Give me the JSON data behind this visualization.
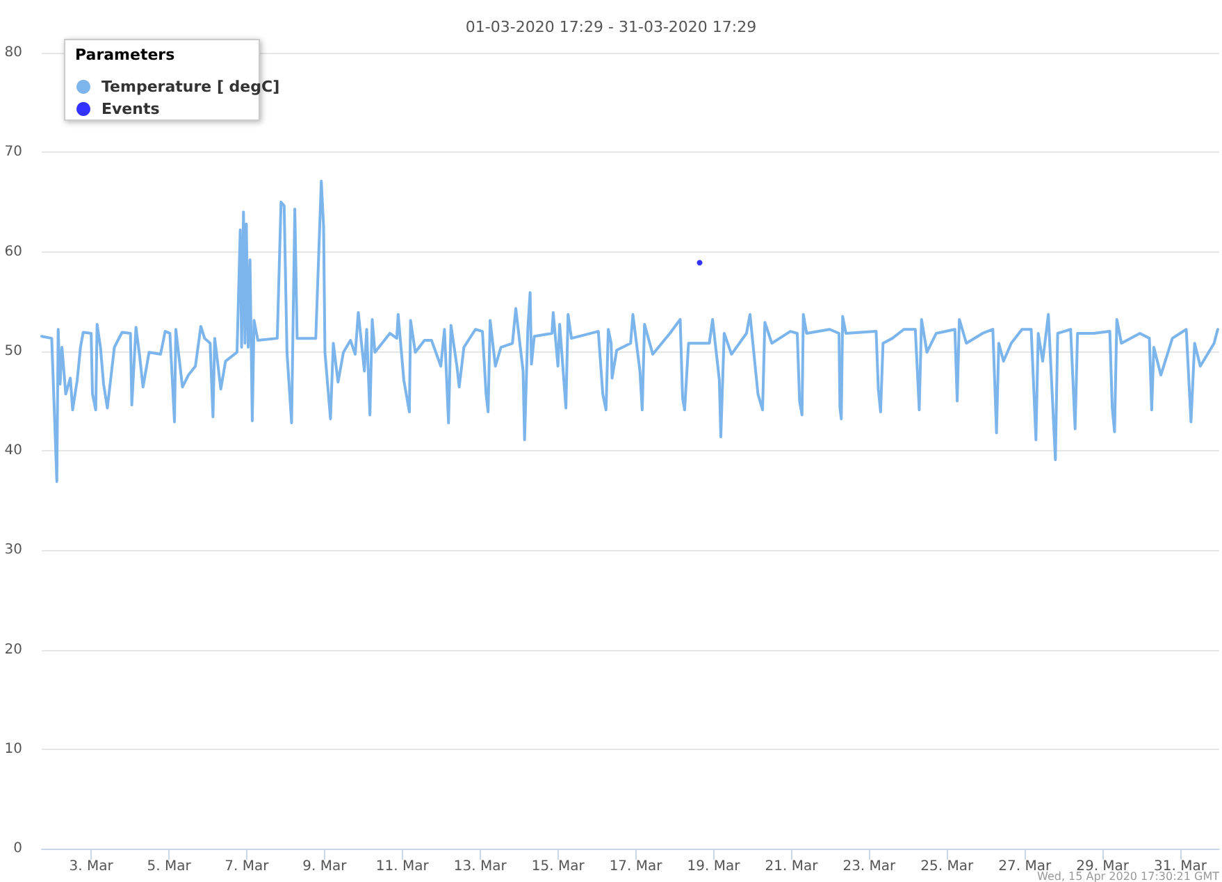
{
  "chart_data": {
    "type": "line",
    "title": "01-03-2020 17:29 - 31-03-2020 17:29",
    "legend_title": "Parameters",
    "annotations": [
      "Wed, 15 Apr 2020 17:30:21 GMT"
    ],
    "xlim": [
      "2020-03-01T17:30",
      "2020-04-01T00:00"
    ],
    "xticks": [
      {
        "value": "2020-03-03",
        "label": "3. Mar"
      },
      {
        "value": "2020-03-05",
        "label": "5. Mar"
      },
      {
        "value": "2020-03-07",
        "label": "7. Mar"
      },
      {
        "value": "2020-03-09",
        "label": "9. Mar"
      },
      {
        "value": "2020-03-11",
        "label": "11. Mar"
      },
      {
        "value": "2020-03-13",
        "label": "13. Mar"
      },
      {
        "value": "2020-03-15",
        "label": "15. Mar"
      },
      {
        "value": "2020-03-17",
        "label": "17. Mar"
      },
      {
        "value": "2020-03-19",
        "label": "19. Mar"
      },
      {
        "value": "2020-03-21",
        "label": "21. Mar"
      },
      {
        "value": "2020-03-23",
        "label": "23. Mar"
      },
      {
        "value": "2020-03-25",
        "label": "25. Mar"
      },
      {
        "value": "2020-03-27",
        "label": "27. Mar"
      },
      {
        "value": "2020-03-29",
        "label": "29. Mar"
      },
      {
        "value": "2020-03-31",
        "label": "31. Mar"
      }
    ],
    "ylim": [
      0,
      80
    ],
    "yticks": [
      0,
      10,
      20,
      30,
      40,
      50,
      60,
      70,
      80
    ],
    "grid": "y",
    "legend": "top left",
    "marker": "none",
    "line_style": "solid",
    "series": [
      {
        "name": "Temperature [ degC]",
        "color": "#7cb5ec",
        "x": [
          "2020-03-01T17:30",
          "2020-03-01T23:40",
          "2020-03-02T01:00",
          "2020-03-02T02:50",
          "2020-03-02T03:40",
          "2020-03-02T04:50",
          "2020-03-02T06:00",
          "2020-03-02T08:20",
          "2020-03-02T11:10",
          "2020-03-02T12:35",
          "2020-03-02T15:25",
          "2020-03-02T17:25",
          "2020-03-02T19:05",
          "2020-03-03T00:00",
          "2020-03-03T00:50",
          "2020-03-03T02:50",
          "2020-03-03T03:40",
          "2020-03-03T05:45",
          "2020-03-03T07:40",
          "2020-03-03T10:00",
          "2020-03-03T14:20",
          "2020-03-03T19:05",
          "2020-03-04T00:15",
          "2020-03-04T01:05",
          "2020-03-04T03:40",
          "2020-03-04T06:00",
          "2020-03-04T08:00",
          "2020-03-04T11:45",
          "2020-03-04T18:50",
          "2020-03-04T21:40",
          "2020-03-05T00:35",
          "2020-03-05T03:25",
          "2020-03-05T04:15",
          "2020-03-05T08:20",
          "2020-03-05T12:00",
          "2020-03-05T16:20",
          "2020-03-05T19:40",
          "2020-03-05T22:00",
          "2020-03-06T01:25",
          "2020-03-06T03:10",
          "2020-03-06T04:15",
          "2020-03-06T08:00",
          "2020-03-06T10:55",
          "2020-03-06T18:00",
          "2020-03-06T20:00",
          "2020-03-06T20:50",
          "2020-03-06T22:00",
          "2020-03-06T22:55",
          "2020-03-06T23:45",
          "2020-03-07T00:55",
          "2020-03-07T02:00",
          "2020-03-07T03:25",
          "2020-03-07T04:30",
          "2020-03-07T06:50",
          "2020-03-07T18:50",
          "2020-03-07T21:10",
          "2020-03-07T23:05",
          "2020-03-08T00:50",
          "2020-03-08T03:40",
          "2020-03-08T05:40",
          "2020-03-08T07:05",
          "2020-03-08T18:35",
          "2020-03-08T22:00",
          "2020-03-08T23:25",
          "2020-03-09T00:15",
          "2020-03-09T03:40",
          "2020-03-09T05:25",
          "2020-03-09T08:20",
          "2020-03-09T11:40",
          "2020-03-09T16:00",
          "2020-03-09T18:55",
          "2020-03-09T20:50",
          "2020-03-10T00:35",
          "2020-03-10T02:00",
          "2020-03-10T04:00",
          "2020-03-10T05:25",
          "2020-03-10T07:05",
          "2020-03-10T16:20",
          "2020-03-10T20:35",
          "2020-03-10T21:25",
          "2020-03-11T00:55",
          "2020-03-11T04:20",
          "2020-03-11T05:05",
          "2020-03-11T08:00",
          "2020-03-11T13:40",
          "2020-03-11T18:00",
          "2020-03-11T23:45",
          "2020-03-12T02:00",
          "2020-03-12T04:30",
          "2020-03-12T06:00",
          "2020-03-12T09:40",
          "2020-03-12T11:05",
          "2020-03-12T14:00",
          "2020-03-12T21:05",
          "2020-03-13T01:25",
          "2020-03-13T03:40",
          "2020-03-13T04:55",
          "2020-03-13T06:10",
          "2020-03-13T09:25",
          "2020-03-13T12:50",
          "2020-03-13T19:55",
          "2020-03-13T22:00",
          "2020-03-14T02:30",
          "2020-03-14T03:25",
          "2020-03-14T05:25",
          "2020-03-14T06:50",
          "2020-03-14T07:40",
          "2020-03-14T09:25",
          "2020-03-14T20:20",
          "2020-03-14T21:05",
          "2020-03-15T00:00",
          "2020-03-15T01:05",
          "2020-03-15T04:55",
          "2020-03-15T06:15",
          "2020-03-15T08:20",
          "2020-03-16T00:55",
          "2020-03-16T03:40",
          "2020-03-16T05:40",
          "2020-03-16T07:05",
          "2020-03-16T08:50",
          "2020-03-16T09:25",
          "2020-03-16T12:15",
          "2020-03-16T20:50",
          "2020-03-16T22:15",
          "2020-03-17T02:35",
          "2020-03-17T04:00",
          "2020-03-17T05:25",
          "2020-03-17T10:30",
          "2020-03-17T21:05",
          "2020-03-18T03:25",
          "2020-03-18T04:55",
          "2020-03-18T06:10",
          "2020-03-18T08:35",
          "2020-03-18T21:25",
          "2020-03-18T23:25",
          "2020-03-19T03:35",
          "2020-03-19T04:30",
          "2020-03-19T06:35",
          "2020-03-19T11:05",
          "2020-03-19T20:20",
          "2020-03-19T22:30",
          "2020-03-20T03:25",
          "2020-03-20T06:15",
          "2020-03-20T07:40",
          "2020-03-20T12:00",
          "2020-03-20T23:25",
          "2020-03-21T03:40",
          "2020-03-21T05:05",
          "2020-03-21T06:35",
          "2020-03-21T07:25",
          "2020-03-21T09:25",
          "2020-03-21T23:40",
          "2020-03-22T05:25",
          "2020-03-22T06:00",
          "2020-03-22T06:50",
          "2020-03-22T07:40",
          "2020-03-22T09:40",
          "2020-03-23T04:20",
          "2020-03-23T05:40",
          "2020-03-23T07:05",
          "2020-03-23T08:35",
          "2020-03-23T14:20",
          "2020-03-23T21:25",
          "2020-03-24T04:30",
          "2020-03-24T06:55",
          "2020-03-24T08:20",
          "2020-03-24T11:40",
          "2020-03-24T17:25",
          "2020-03-25T04:55",
          "2020-03-25T06:20",
          "2020-03-25T07:40",
          "2020-03-25T12:00",
          "2020-03-25T22:00",
          "2020-03-26T04:20",
          "2020-03-26T06:35",
          "2020-03-26T08:00",
          "2020-03-26T10:55",
          "2020-03-26T15:40",
          "2020-03-26T22:20",
          "2020-03-27T04:00",
          "2020-03-27T06:55",
          "2020-03-27T08:20",
          "2020-03-27T11:05",
          "2020-03-27T14:35",
          "2020-03-27T18:55",
          "2020-03-27T20:20",
          "2020-03-28T04:20",
          "2020-03-28T07:05",
          "2020-03-28T08:35",
          "2020-03-28T18:35",
          "2020-03-29T04:30",
          "2020-03-29T06:00",
          "2020-03-29T07:25",
          "2020-03-29T08:50",
          "2020-03-29T11:40",
          "2020-03-29T23:05",
          "2020-03-30T04:55",
          "2020-03-30T06:20",
          "2020-03-30T07:40",
          "2020-03-30T12:00",
          "2020-03-30T19:05",
          "2020-03-31T03:40",
          "2020-03-31T06:35",
          "2020-03-31T08:50",
          "2020-03-31T12:20",
          "2020-03-31T20:50",
          "2020-03-31T23:05"
        ],
        "values": [
          51.5,
          51.3,
          45.3,
          36.9,
          52.2,
          46.7,
          50.4,
          45.7,
          47.3,
          44.1,
          47.1,
          50.4,
          51.9,
          51.8,
          45.7,
          44.1,
          52.7,
          50.4,
          46.7,
          44.3,
          50.4,
          51.9,
          51.8,
          44.6,
          52.4,
          49.4,
          46.4,
          49.9,
          49.7,
          52,
          51.8,
          42.9,
          52.2,
          46.4,
          47.6,
          48.5,
          52.5,
          51.3,
          50.8,
          43.4,
          51.3,
          46.2,
          49,
          49.9,
          62.2,
          50.4,
          64,
          50.8,
          62.8,
          50.4,
          59.2,
          43,
          53.1,
          51.1,
          51.3,
          65,
          64.6,
          49.9,
          42.8,
          64.3,
          51.3,
          51.3,
          67.1,
          62.5,
          49.9,
          43.2,
          50.8,
          46.9,
          49.9,
          51.1,
          49.7,
          53.9,
          48,
          52.2,
          43.6,
          53.2,
          49.9,
          51.8,
          51.3,
          53.7,
          47.1,
          43.9,
          53.1,
          49.9,
          51.1,
          51.1,
          48.5,
          52.2,
          42.8,
          52.6,
          48.5,
          46.4,
          50.4,
          52.2,
          52,
          45.7,
          43.9,
          53.1,
          48.5,
          50.4,
          50.8,
          54.3,
          48,
          41.1,
          52.2,
          55.9,
          48.7,
          51.5,
          51.8,
          53.9,
          48.5,
          52.7,
          44.3,
          53.7,
          51.3,
          52,
          45.7,
          44.1,
          52.2,
          50.8,
          47.3,
          50.1,
          50.8,
          53.7,
          48,
          44.1,
          52.7,
          49.7,
          51.8,
          53.2,
          45.3,
          44.1,
          50.8,
          50.8,
          53.2,
          47.1,
          41.4,
          51.8,
          49.7,
          51.8,
          53.7,
          45.7,
          44.1,
          52.9,
          50.8,
          52,
          51.8,
          45,
          43.6,
          53.7,
          51.8,
          52.2,
          51.8,
          44.3,
          43.2,
          53.5,
          51.8,
          52,
          46.2,
          43.9,
          50.8,
          51.3,
          52.2,
          52.2,
          44.1,
          53.2,
          49.9,
          51.8,
          52.2,
          45,
          53.2,
          50.8,
          51.8,
          52.2,
          41.8,
          50.8,
          49,
          50.8,
          52.2,
          52.2,
          41.1,
          51.8,
          49,
          53.7,
          39.1,
          51.8,
          52.2,
          42.2,
          51.8,
          51.8,
          52,
          44.3,
          41.9,
          53.2,
          50.8,
          51.8,
          51.3,
          44.1,
          50.4,
          47.6,
          51.3,
          52.2,
          42.9,
          50.8,
          48.5,
          50.8,
          52.2
        ]
      },
      {
        "name": "Events",
        "color": "#0000ff",
        "type": "scatter",
        "marker": "circle",
        "x": [
          "2020-03-18T15:25"
        ],
        "values": [
          58.9
        ]
      }
    ]
  }
}
